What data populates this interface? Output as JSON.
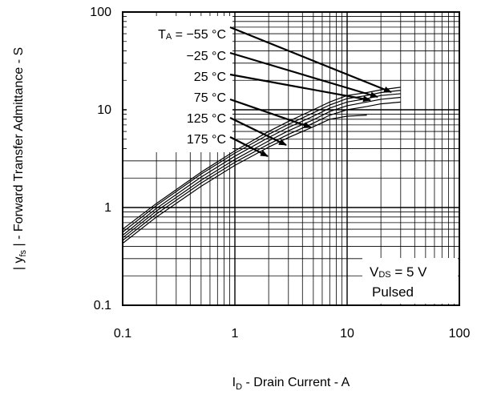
{
  "chart_data": {
    "type": "line",
    "xscale": "log",
    "yscale": "log",
    "xlim": [
      0.1,
      100
    ],
    "ylim": [
      0.1,
      100
    ],
    "grid": true,
    "x_ticks": [
      "0.1",
      "1",
      "10",
      "100"
    ],
    "y_ticks": [
      "0.1",
      "1",
      "10",
      "100"
    ],
    "xlabel": {
      "main": "I",
      "sub": "D",
      "rest": " - Drain Current - A"
    },
    "ylabel": {
      "pre": "| y",
      "sub": "fs",
      "rest": " | - Forward Transfer Admittance - S"
    },
    "conditions": {
      "line1_main": "V",
      "line1_sub": "DS",
      "line1_rest": " = 5 V",
      "line2": "Pulsed"
    },
    "legend_prefix": {
      "main": "T",
      "sub": "A",
      "rest": " = "
    },
    "series": [
      {
        "name": "−55 °C",
        "x": [
          0.1,
          0.2,
          0.5,
          1,
          2,
          3,
          5,
          7,
          10,
          15,
          20,
          30
        ],
        "y": [
          0.6,
          1.1,
          2.3,
          3.8,
          6.0,
          7.6,
          10.0,
          12.0,
          14.0,
          15.0,
          16.0,
          17.0
        ]
      },
      {
        "name": "−25 °C",
        "x": [
          0.1,
          0.2,
          0.5,
          1,
          2,
          3,
          5,
          7,
          10,
          15,
          20,
          30
        ],
        "y": [
          0.56,
          1.05,
          2.2,
          3.6,
          5.6,
          7.1,
          9.3,
          11.2,
          13.0,
          14.0,
          15.0,
          15.8
        ]
      },
      {
        "name": "25 °C",
        "x": [
          0.1,
          0.2,
          0.5,
          1,
          2,
          3,
          5,
          7,
          10,
          15,
          20,
          30
        ],
        "y": [
          0.52,
          0.98,
          2.05,
          3.35,
          5.2,
          6.6,
          8.6,
          10.4,
          12.0,
          13.0,
          14.0,
          14.6
        ]
      },
      {
        "name": "75 °C",
        "x": [
          0.1,
          0.2,
          0.5,
          1,
          2,
          3,
          5,
          7,
          10,
          15,
          20,
          30
        ],
        "y": [
          0.49,
          0.92,
          1.9,
          3.1,
          4.8,
          6.1,
          7.9,
          9.6,
          11.0,
          12.0,
          12.8,
          13.4
        ]
      },
      {
        "name": "125 °C",
        "x": [
          0.1,
          0.2,
          0.5,
          1,
          2,
          3,
          5,
          7,
          10,
          15,
          20,
          30
        ],
        "y": [
          0.46,
          0.86,
          1.78,
          2.9,
          4.45,
          5.6,
          7.3,
          8.8,
          10.0,
          10.8,
          11.5,
          12.0
        ]
      },
      {
        "name": "175 °C",
        "x": [
          0.1,
          0.2,
          0.5,
          1,
          2,
          3,
          5,
          7,
          10,
          15
        ],
        "y": [
          0.43,
          0.8,
          1.65,
          2.7,
          4.15,
          5.2,
          6.7,
          8.0,
          8.6,
          8.8
        ]
      }
    ]
  }
}
